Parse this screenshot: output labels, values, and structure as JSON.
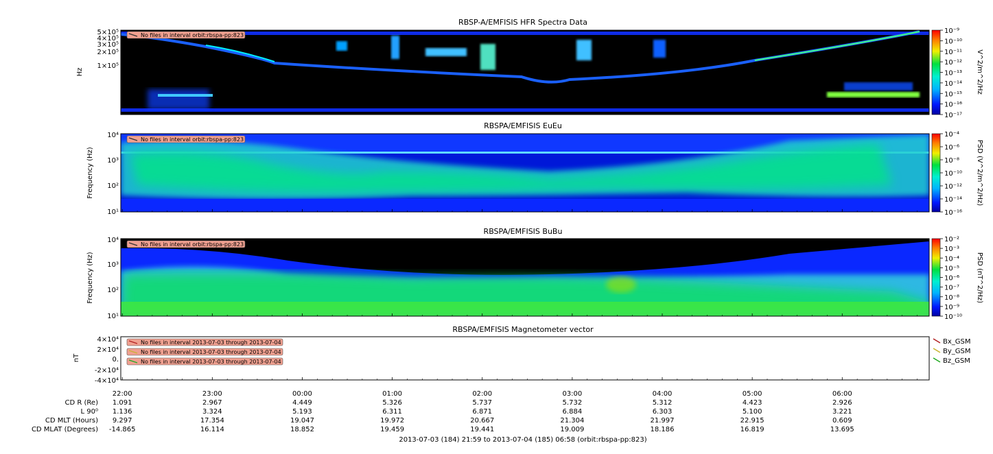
{
  "chart_data": [
    {
      "type": "heatmap",
      "title": "RBSP-A/EMFISIS  HFR Spectra Data",
      "ylabel": "Hz",
      "yticks": [
        "5×10⁵",
        "4×10⁵",
        "3×10⁵",
        "2×10⁵",
        "1×10⁵"
      ],
      "ylim": [
        10000,
        500000
      ],
      "ylog": true,
      "zlabel": "V^2/m^2/Hz",
      "zticks": [
        "10⁻⁹",
        "10⁻¹⁰",
        "10⁻¹¹",
        "10⁻¹²",
        "10⁻¹³",
        "10⁻¹⁴",
        "10⁻¹⁵",
        "10⁻¹⁶",
        "10⁻¹⁷"
      ],
      "zlim": [
        1e-17,
        1e-09
      ],
      "zlog": true,
      "note": "No files in interval orbit:rbspa-pp:823"
    },
    {
      "type": "heatmap",
      "title": "RBSPA/EMFISIS  EuEu",
      "ylabel": "Frequency (Hz)",
      "yticks": [
        "10⁴",
        "10³",
        "10²",
        "10¹"
      ],
      "ylim": [
        10,
        10000
      ],
      "ylog": true,
      "zlabel": "PSD (V^2/m^2/Hz)",
      "zticks": [
        "10⁻⁴",
        "10⁻⁶",
        "10⁻⁸",
        "10⁻¹⁰",
        "10⁻¹²",
        "10⁻¹⁴",
        "10⁻¹⁶"
      ],
      "zlim": [
        1e-16,
        0.0001
      ],
      "zlog": true,
      "note": "No files in interval orbit:rbspa-pp:823"
    },
    {
      "type": "heatmap",
      "title": "RBSPA/EMFISIS  BuBu",
      "ylabel": "Frequency (Hz)",
      "yticks": [
        "10⁴",
        "10³",
        "10²",
        "10¹"
      ],
      "ylim": [
        10,
        10000
      ],
      "ylog": true,
      "zlabel": "PSD (nT^2/Hz)",
      "zticks": [
        "10⁻²",
        "10⁻³",
        "10⁻⁴",
        "10⁻⁵",
        "10⁻⁶",
        "10⁻⁷",
        "10⁻⁸",
        "10⁻⁹",
        "10⁻¹⁰"
      ],
      "zlim": [
        1e-10,
        0.01
      ],
      "zlog": true,
      "note": "No files in interval orbit:rbspa-pp:823"
    },
    {
      "type": "line",
      "title": "RBSPA/EMFISIS  Magnetometer vector",
      "ylabel": "nT",
      "yticks": [
        "4×10⁴",
        "2×10⁴",
        "0.",
        "-2×10⁴",
        "-4×10⁴"
      ],
      "ylim": [
        -40000,
        40000
      ],
      "series": [
        {
          "name": "Bx_GSM",
          "color": "#b22222",
          "values": []
        },
        {
          "name": "By_GSM",
          "color": "#c8b432",
          "values": []
        },
        {
          "name": "Bz_GSM",
          "color": "#22aa22",
          "values": []
        }
      ],
      "notes": [
        "No files in interval 2013-07-03 through 2013-07-04",
        "No files in interval 2013-07-03 through 2013-07-04",
        "No files in interval 2013-07-03 through 2013-07-04"
      ]
    }
  ],
  "time_axis": {
    "ticks": [
      "22:00",
      "23:00",
      "00:00",
      "01:00",
      "02:00",
      "03:00",
      "04:00",
      "05:00",
      "06:00"
    ],
    "range_label": "2013-07-03 (184) 21:59 to 2013-07-04 (185) 06:58 (orbit:rbspa-pp:823)"
  },
  "ephemeris": {
    "rows": [
      {
        "label": "CD R (Re)",
        "values": [
          "1.091",
          "2.967",
          "4.449",
          "5.326",
          "5.737",
          "5.732",
          "5.312",
          "4.423",
          "2.926"
        ]
      },
      {
        "label": "L 90⁰",
        "values": [
          "1.136",
          "3.324",
          "5.193",
          "6.311",
          "6.871",
          "6.884",
          "6.303",
          "5.100",
          "3.221"
        ]
      },
      {
        "label": "CD MLT (Hours)",
        "values": [
          "9.297",
          "17.354",
          "19.047",
          "19.972",
          "20.667",
          "21.304",
          "21.997",
          "22.915",
          "0.609"
        ]
      },
      {
        "label": "CD MLAT (Degrees)",
        "values": [
          "-14.865",
          "16.114",
          "18.852",
          "19.459",
          "19.441",
          "19.009",
          "18.186",
          "16.819",
          "13.695"
        ]
      }
    ]
  },
  "colors": {
    "background": "#000000",
    "note_box": "#f0a090",
    "plasmasphere": "#00e08a",
    "noise": "#1030ff"
  }
}
